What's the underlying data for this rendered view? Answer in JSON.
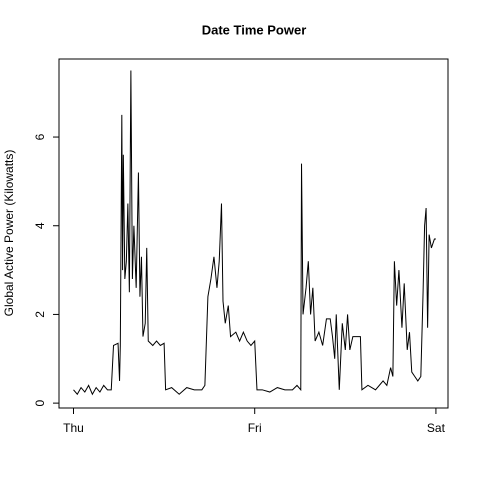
{
  "chart_data": {
    "type": "line",
    "title": "Date Time Power",
    "ylabel": "Global Active Power (Kilowatts)",
    "color": "#000000",
    "x": [
      0,
      0.5,
      1,
      1.5,
      2,
      2.5,
      3,
      3.5,
      4,
      4.5,
      5,
      5.3,
      5.9,
      6.1,
      6.2,
      6.4,
      6.5,
      6.6,
      6.8,
      7.0,
      7.2,
      7.4,
      7.6,
      7.8,
      8.0,
      8.3,
      8.6,
      8.8,
      9.0,
      9.2,
      9.5,
      9.7,
      9.9,
      10.5,
      11,
      11.5,
      12,
      12.2,
      13,
      14,
      15,
      16,
      17,
      17.4,
      17.8,
      18.2,
      18.6,
      19,
      19.3,
      19.6,
      19.8,
      20.1,
      20.5,
      20.8,
      21.5,
      22,
      22.5,
      23,
      23.5,
      24,
      24.3,
      25,
      26,
      27,
      28,
      29,
      29.6,
      30.1,
      30.2,
      30.4,
      30.8,
      31.1,
      31.4,
      31.7,
      32,
      32.5,
      33,
      33.5,
      34,
      34.3,
      34.6,
      34.8,
      35.2,
      35.6,
      36,
      36.3,
      36.6,
      37,
      37.5,
      38,
      38.2,
      39,
      40,
      41,
      41.5,
      42,
      42.3,
      42.5,
      42.8,
      43.1,
      43.5,
      43.8,
      44.2,
      44.5,
      44.8,
      45.2,
      45.6,
      46,
      46.3,
      46.5,
      46.7,
      46.9,
      47.1,
      47.4,
      47.8,
      48
    ],
    "values": [
      0.3,
      0.2,
      0.35,
      0.25,
      0.4,
      0.2,
      0.35,
      0.25,
      0.4,
      0.3,
      0.3,
      1.3,
      1.35,
      0.5,
      1.3,
      6.5,
      3.0,
      5.6,
      2.8,
      3.2,
      4.5,
      2.5,
      7.5,
      2.8,
      4.0,
      2.6,
      5.2,
      2.4,
      3.3,
      1.5,
      1.8,
      3.5,
      1.4,
      1.3,
      1.4,
      1.3,
      1.35,
      0.3,
      0.35,
      0.2,
      0.35,
      0.3,
      0.3,
      0.4,
      2.4,
      2.8,
      3.3,
      2.6,
      3.2,
      4.5,
      2.3,
      1.8,
      2.2,
      1.5,
      1.6,
      1.4,
      1.6,
      1.4,
      1.3,
      1.4,
      0.3,
      0.3,
      0.25,
      0.35,
      0.3,
      0.3,
      0.4,
      0.3,
      5.4,
      2.0,
      2.6,
      3.2,
      2.0,
      2.6,
      1.4,
      1.6,
      1.3,
      1.9,
      1.9,
      1.5,
      1.0,
      2.0,
      0.3,
      1.8,
      1.2,
      2.0,
      1.2,
      1.5,
      1.5,
      1.5,
      0.3,
      0.4,
      0.3,
      0.5,
      0.4,
      0.8,
      0.6,
      3.2,
      2.2,
      3.0,
      1.7,
      2.7,
      1.2,
      1.6,
      0.7,
      0.6,
      0.5,
      0.6,
      2.5,
      4.0,
      4.4,
      1.7,
      3.8,
      3.5,
      3.7,
      3.7
    ],
    "xlim": [
      -1.92,
      49.6
    ],
    "xticks": [
      {
        "value": 0,
        "label": "Thu"
      },
      {
        "value": 24,
        "label": "Fri"
      },
      {
        "value": 48,
        "label": "Sat"
      }
    ],
    "ylim": [
      -0.11,
      7.76
    ],
    "yticks": [
      0,
      2,
      4,
      6
    ]
  }
}
